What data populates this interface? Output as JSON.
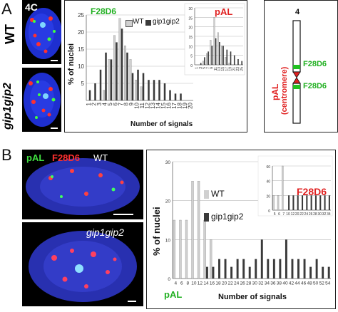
{
  "panelA": {
    "letter": "A",
    "stage_label": "4C",
    "row_labels": [
      "WT",
      "gip1gip2"
    ],
    "chart": {
      "series_labels": [
        "WT",
        "gip1gip2"
      ],
      "main_title": "F28D6",
      "inset_title": "pAL",
      "ylabel": "% of nuclei",
      "xlabel": "Number of signals"
    },
    "chromosome": {
      "number": "4",
      "side_label_1": "pAL",
      "side_label_2": "(centromere)",
      "probe_1": "F28D6",
      "probe_2": "F28D6"
    }
  },
  "panelB": {
    "letter": "B",
    "legend_pal": "pAL",
    "legend_f28d6": "F28D6",
    "legend_wt": "WT",
    "row2_label": "gip1gip2",
    "chart": {
      "series_labels": [
        "WT",
        "gip1gip2"
      ],
      "inset_title": "F28D6",
      "ylabel": "% of nuclei",
      "xlabel": "Number of signals",
      "corner_label": "pAL"
    }
  },
  "colors": {
    "wt_bar": "#d0d0d0",
    "mutant_bar": "#3a3a3a",
    "green_label": "#22b022",
    "red_label": "#e02020",
    "grid": "#bbbbbb"
  },
  "chart_data": [
    {
      "type": "bar",
      "title": "F28D6",
      "xlabel": "Number of signals",
      "ylabel": "% of nuclei",
      "categories": [
        "1",
        "2",
        "3",
        "4",
        "5",
        "6",
        "7",
        "8",
        "9",
        "10",
        "11",
        "12",
        "13",
        "14",
        "15",
        "16",
        "17",
        "18",
        "19",
        "20"
      ],
      "ylim": [
        0,
        25
      ],
      "yticks": [
        "5",
        "10",
        "15",
        "20",
        "25"
      ],
      "series": [
        {
          "name": "WT",
          "values": [
            0,
            0,
            0,
            3,
            12,
            19,
            24,
            16,
            12,
            6,
            4,
            0,
            0,
            0,
            0,
            0,
            0,
            0,
            0,
            0
          ]
        },
        {
          "name": "gip1gip2",
          "values": [
            3,
            5,
            9,
            14,
            12,
            17,
            21,
            14,
            8,
            9,
            8,
            6,
            6,
            6,
            5,
            3,
            2,
            2,
            0,
            0
          ]
        }
      ]
    },
    {
      "type": "bar",
      "title": "pAL",
      "inset": true,
      "ylim": [
        0,
        30
      ],
      "yticks": [
        "0",
        "5",
        "10",
        "15",
        "20",
        "25",
        "30"
      ],
      "categories": [
        "1",
        "3",
        "5",
        "7",
        "9",
        "11",
        "13",
        "15",
        "17",
        "19",
        "21",
        "23",
        "25"
      ],
      "series": [
        {
          "name": "WT",
          "values": [
            0,
            0,
            2,
            6,
            13,
            25,
            17,
            10,
            4,
            1,
            0,
            0,
            0
          ]
        },
        {
          "name": "gip1gip2",
          "values": [
            0,
            1,
            4,
            7,
            10,
            14,
            12,
            10,
            8,
            7,
            5,
            3,
            2
          ]
        }
      ]
    },
    {
      "type": "bar",
      "title": "pAL",
      "xlabel": "Number of signals",
      "ylabel": "% of nuclei",
      "ylim": [
        0,
        30
      ],
      "yticks": [
        "0",
        "10",
        "20",
        "30"
      ],
      "categories": [
        "4",
        "6",
        "8",
        "10",
        "12",
        "14",
        "16",
        "18",
        "20",
        "22",
        "24",
        "26",
        "28",
        "30",
        "32",
        "34",
        "36",
        "38",
        "40",
        "42",
        "44",
        "46",
        "48",
        "50",
        "52",
        "54"
      ],
      "series": [
        {
          "name": "WT",
          "values": [
            15,
            15,
            15,
            25,
            25,
            15,
            10,
            0,
            0,
            0,
            0,
            0,
            0,
            0,
            0,
            0,
            0,
            0,
            0,
            0,
            0,
            0,
            0,
            0,
            0,
            0
          ]
        },
        {
          "name": "gip1gip2",
          "values": [
            0,
            0,
            0,
            0,
            0,
            3,
            3,
            5,
            5,
            3,
            5,
            5,
            3,
            5,
            10,
            5,
            5,
            5,
            10,
            5,
            5,
            5,
            3,
            5,
            3,
            3
          ]
        }
      ]
    },
    {
      "type": "bar",
      "title": "F28D6",
      "inset": true,
      "ylim": [
        0,
        60
      ],
      "yticks": [
        "0",
        "20",
        "40",
        "60"
      ],
      "categories": [
        "5",
        "6",
        "7",
        "10",
        "12",
        "20",
        "22",
        "24",
        "26",
        "28",
        "30",
        "32",
        "34"
      ],
      "series": [
        {
          "name": "WT",
          "values": [
            20,
            20,
            60,
            0,
            0,
            0,
            0,
            0,
            0,
            0,
            0,
            0,
            0
          ]
        },
        {
          "name": "gip1gip2",
          "values": [
            0,
            0,
            0,
            20,
            20,
            20,
            20,
            20,
            20,
            20,
            20,
            20,
            20
          ]
        }
      ]
    }
  ]
}
